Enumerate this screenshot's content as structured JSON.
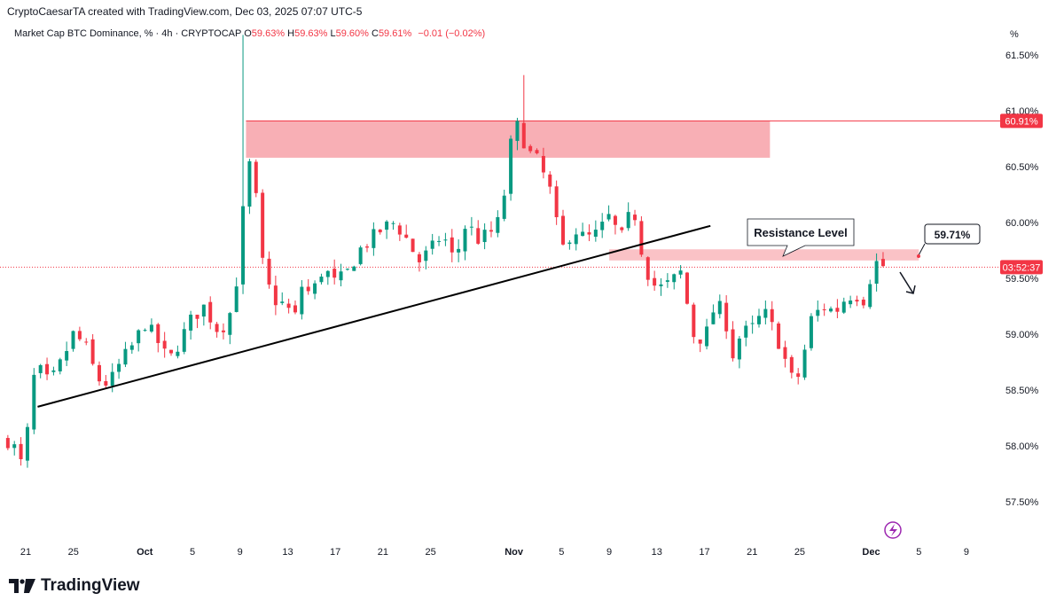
{
  "header": {
    "text": "CryptoCaesarTA created with TradingView.com, Dec 03, 2025 07:07 UTC-5"
  },
  "symbol_line": {
    "name": "Market Cap BTC Dominance, % · 4h · CRYPTOCAP",
    "o_label": "O",
    "o_value": "59.63%",
    "h_label": "H",
    "h_value": "59.63%",
    "l_label": "L",
    "l_value": "59.60%",
    "c_label": "C",
    "c_value": "59.61%",
    "change": "−0.01 (−0.02%)"
  },
  "brand": {
    "name": "TradingView",
    "icon": "tradingview-logo-icon"
  },
  "colors": {
    "up": "#089981",
    "down": "#f23645",
    "zone": "#f7a1a8",
    "trendline": "#000000",
    "price_line": "#f23645"
  },
  "chart_data": {
    "type": "candlestick",
    "unit": "%",
    "ylim": [
      57.25,
      61.75
    ],
    "yticks": [
      "61.50%",
      "61.00%",
      "60.50%",
      "60.00%",
      "59.50%",
      "59.00%",
      "58.50%",
      "58.00%",
      "57.50%"
    ],
    "ytick_values": [
      61.5,
      61.0,
      60.5,
      60.0,
      59.5,
      59.0,
      58.5,
      58.0,
      57.5
    ],
    "y_unit_label": "%",
    "xticks": [
      {
        "label": "21",
        "day": 0,
        "bold": false
      },
      {
        "label": "25",
        "day": 4,
        "bold": false
      },
      {
        "label": "Oct",
        "day": 10,
        "bold": true
      },
      {
        "label": "5",
        "day": 14,
        "bold": false
      },
      {
        "label": "9",
        "day": 18,
        "bold": false
      },
      {
        "label": "13",
        "day": 22,
        "bold": false
      },
      {
        "label": "17",
        "day": 26,
        "bold": false
      },
      {
        "label": "21",
        "day": 30,
        "bold": false
      },
      {
        "label": "25",
        "day": 34,
        "bold": false
      },
      {
        "label": "Nov",
        "day": 41,
        "bold": true
      },
      {
        "label": "5",
        "day": 45,
        "bold": false
      },
      {
        "label": "9",
        "day": 49,
        "bold": false
      },
      {
        "label": "13",
        "day": 53,
        "bold": false
      },
      {
        "label": "17",
        "day": 57,
        "bold": false
      },
      {
        "label": "21",
        "day": 61,
        "bold": false
      },
      {
        "label": "25",
        "day": 65,
        "bold": false
      },
      {
        "label": "Dec",
        "day": 71,
        "bold": true
      },
      {
        "label": "5",
        "day": 75,
        "bold": false
      },
      {
        "label": "9",
        "day": 79,
        "bold": false
      }
    ],
    "close_path": [
      [
        -1.5,
        58.05
      ],
      [
        -1.0,
        58.0
      ],
      [
        -0.5,
        57.82
      ],
      [
        0.0,
        57.95
      ],
      [
        0.5,
        58.55
      ],
      [
        1.0,
        58.7
      ],
      [
        2.0,
        58.55
      ],
      [
        3.0,
        58.75
      ],
      [
        4.0,
        59.0
      ],
      [
        5.0,
        58.9
      ],
      [
        6.0,
        58.6
      ],
      [
        7.0,
        58.55
      ],
      [
        8.0,
        58.75
      ],
      [
        9.0,
        58.9
      ],
      [
        10.0,
        59.1
      ],
      [
        11.0,
        58.95
      ],
      [
        12.0,
        58.75
      ],
      [
        13.0,
        58.95
      ],
      [
        14.0,
        59.15
      ],
      [
        15.0,
        59.25
      ],
      [
        16.0,
        59.05
      ],
      [
        17.0,
        59.1
      ],
      [
        17.5,
        59.4
      ],
      [
        18.0,
        59.6
      ],
      [
        18.5,
        60.6
      ],
      [
        19.0,
        60.45
      ],
      [
        19.5,
        60.1
      ],
      [
        20.0,
        59.5
      ],
      [
        21.0,
        59.3
      ],
      [
        22.0,
        59.25
      ],
      [
        22.5,
        59.05
      ],
      [
        23.0,
        59.45
      ],
      [
        24.0,
        59.35
      ],
      [
        25.0,
        59.6
      ],
      [
        26.0,
        59.45
      ],
      [
        27.0,
        59.55
      ],
      [
        28.0,
        59.75
      ],
      [
        29.0,
        59.85
      ],
      [
        30.0,
        59.95
      ],
      [
        31.0,
        60.0
      ],
      [
        32.0,
        59.85
      ],
      [
        33.0,
        59.65
      ],
      [
        34.0,
        59.75
      ],
      [
        35.0,
        59.9
      ],
      [
        36.0,
        59.65
      ],
      [
        37.0,
        60.0
      ],
      [
        38.0,
        59.85
      ],
      [
        39.0,
        59.9
      ],
      [
        40.0,
        60.05
      ],
      [
        40.5,
        60.6
      ],
      [
        41.0,
        60.8
      ],
      [
        41.5,
        60.9
      ],
      [
        42.0,
        60.65
      ],
      [
        43.0,
        60.55
      ],
      [
        44.0,
        60.3
      ],
      [
        45.0,
        59.75
      ],
      [
        46.0,
        59.95
      ],
      [
        47.0,
        59.85
      ],
      [
        48.0,
        59.9
      ],
      [
        49.0,
        60.05
      ],
      [
        50.0,
        59.85
      ],
      [
        51.0,
        60.15
      ],
      [
        52.0,
        59.6
      ],
      [
        53.0,
        59.4
      ],
      [
        54.0,
        59.45
      ],
      [
        55.0,
        59.55
      ],
      [
        55.5,
        59.3
      ],
      [
        56.0,
        59.0
      ],
      [
        57.0,
        58.95
      ],
      [
        58.0,
        59.3
      ],
      [
        59.0,
        59.05
      ],
      [
        59.5,
        58.75
      ],
      [
        60.0,
        59.0
      ],
      [
        61.0,
        59.05
      ],
      [
        62.0,
        59.2
      ],
      [
        63.0,
        59.0
      ],
      [
        64.0,
        58.7
      ],
      [
        64.5,
        58.55
      ],
      [
        65.0,
        58.65
      ],
      [
        66.0,
        59.15
      ],
      [
        67.0,
        59.25
      ],
      [
        68.0,
        59.2
      ],
      [
        69.0,
        59.35
      ],
      [
        70.0,
        59.35
      ],
      [
        70.5,
        59.3
      ],
      [
        71.0,
        59.55
      ],
      [
        71.5,
        59.65
      ],
      [
        72.0,
        59.61
      ]
    ],
    "spikes": [
      {
        "day": 18.3,
        "high": 61.68
      },
      {
        "day": 41.7,
        "high": 61.32
      }
    ],
    "candle_count": 135,
    "last_close": 59.61,
    "annotations": {
      "supply_zone": {
        "y_from": 60.58,
        "y_to": 60.91,
        "day_from": 18.5,
        "day_to": 62.5
      },
      "resistance_zone": {
        "y_from": 59.66,
        "y_to": 59.76,
        "day_from": 49.0,
        "day_to": 75.0
      },
      "resistance_label": "Resistance Level",
      "trendline": {
        "from": {
          "day": 1.0,
          "y": 58.35
        },
        "to": {
          "day": 57.5,
          "y": 59.97
        }
      },
      "target_level": {
        "y": 60.91,
        "label": "60.91%"
      },
      "price_line": {
        "y": 59.6,
        "label": "03:52:37"
      },
      "callout_label": "59.71%",
      "down_arrow": "down-arrow-icon",
      "event_marker": "lightning-icon"
    }
  }
}
